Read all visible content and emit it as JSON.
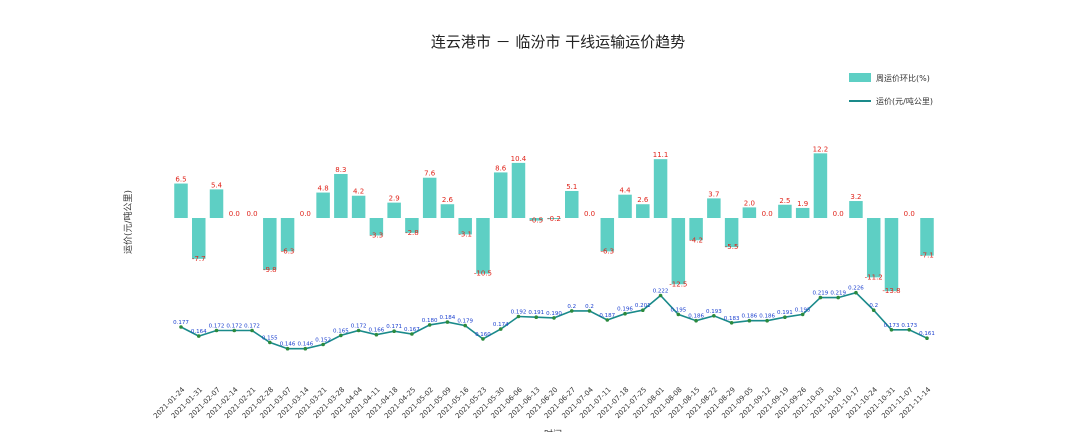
{
  "chart_data": {
    "type": "bar",
    "title": "连云港市 － 临汾市 干线运输运价趋势",
    "ylabel": "运价(元/吨公里)",
    "xlabel": "时间",
    "legend": {
      "placement": "top-right"
    },
    "categories": [
      "2021-01-24",
      "2021-01-31",
      "2021-02-07",
      "2021-02-14",
      "2021-02-21",
      "2021-02-28",
      "2021-03-07",
      "2021-03-14",
      "2021-03-21",
      "2021-03-28",
      "2021-04-04",
      "2021-04-11",
      "2021-04-18",
      "2021-04-25",
      "2021-05-02",
      "2021-05-09",
      "2021-05-16",
      "2021-05-23",
      "2021-05-30",
      "2021-06-06",
      "2021-06-13",
      "2021-06-20",
      "2021-06-27",
      "2021-07-04",
      "2021-07-11",
      "2021-07-18",
      "2021-07-25",
      "2021-08-01",
      "2021-08-08",
      "2021-08-15",
      "2021-08-22",
      "2021-08-29",
      "2021-09-05",
      "2021-09-12",
      "2021-09-19",
      "2021-09-26",
      "2021-10-03",
      "2021-10-10",
      "2021-10-17",
      "2021-10-24",
      "2021-10-31",
      "2021-11-07",
      "2021-11-14"
    ],
    "series": [
      {
        "name": "周运价环比(%)",
        "kind": "bar",
        "color": "#5ecfc4",
        "values": [
          6.5,
          -7.7,
          5.4,
          0.0,
          0.0,
          -9.8,
          -6.3,
          0.0,
          4.8,
          8.3,
          4.2,
          -3.3,
          2.9,
          -2.8,
          7.6,
          2.6,
          -3.1,
          -10.5,
          8.6,
          10.4,
          -0.5,
          -0.2,
          5.1,
          0.0,
          -6.3,
          4.4,
          2.6,
          11.1,
          -12.5,
          -4.2,
          3.7,
          -5.5,
          2.0,
          0.0,
          2.5,
          1.9,
          12.2,
          0.0,
          3.2,
          -11.2,
          -13.8,
          0.0,
          -7.1
        ]
      },
      {
        "name": "运价(元/吨公里)",
        "kind": "line",
        "color": "#1a8a8a",
        "marker_color": "#2b8a3e",
        "values": [
          0.177,
          0.164,
          0.172,
          0.172,
          0.172,
          0.155,
          0.146,
          0.146,
          0.152,
          0.165,
          0.172,
          0.166,
          0.171,
          0.167,
          0.18,
          0.184,
          0.179,
          0.16,
          0.174,
          0.192,
          0.191,
          0.19,
          0.2,
          0.2,
          0.187,
          0.196,
          0.201,
          0.222,
          0.195,
          0.186,
          0.193,
          0.183,
          0.186,
          0.186,
          0.191,
          0.195,
          0.219,
          0.219,
          0.226,
          0.201,
          0.173,
          0.173,
          0.161
        ]
      }
    ],
    "bar_labels": [
      "6.5",
      "-7.7",
      "5.4",
      "0.0",
      "0.0",
      "-9.8",
      "-6.3",
      "0.0",
      "4.8",
      "8.3",
      "4.2",
      "-3.3",
      "2.9",
      "-2.8",
      "7.6",
      "2.6",
      "-3.1",
      "-10.5",
      "8.6",
      "10.4",
      "-0.5",
      "-0.2",
      "5.1",
      "0.0",
      "-6.3",
      "4.4",
      "2.6",
      "11.1",
      "-12.5",
      "-4.2",
      "3.7",
      "-5.5",
      "2.0",
      "0.0",
      "2.5",
      "1.9",
      "12.2",
      "0.0",
      "3.2",
      "-11.2",
      "-13.8",
      "0.0",
      "-7.1"
    ],
    "line_labels": [
      "0.177",
      "0.164",
      "0.172",
      "0.172",
      "0.172",
      "0.155",
      "0.146",
      "0.146",
      "0.152",
      "0.165",
      "0.172",
      "0.166",
      "0.171",
      "0.167",
      "0.180",
      "0.184",
      "0.179",
      "0.160",
      "0.174",
      "0.192",
      "0.191",
      "0.190",
      "0.2",
      "0.2",
      "0.187",
      "0.196",
      "0.201",
      "0.222",
      "0.195",
      "0.186",
      "0.193",
      "0.183",
      "0.186",
      "0.186",
      "0.191",
      "0.195",
      "0.219",
      "0.219",
      "0.226",
      "0.2",
      "0.173",
      "0.173",
      "0.161"
    ],
    "grid": false
  }
}
